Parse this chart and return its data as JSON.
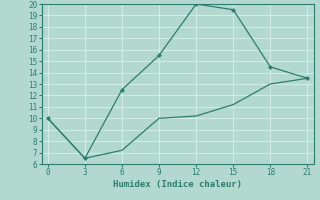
{
  "xlabel": "Humidex (Indice chaleur)",
  "line1_x": [
    0,
    3,
    6,
    9,
    12,
    15,
    18,
    21
  ],
  "line1_y": [
    10,
    6.5,
    12.5,
    15.5,
    20,
    19.5,
    14.5,
    13.5
  ],
  "line2_x": [
    0,
    3,
    6,
    9,
    12,
    15,
    18,
    21
  ],
  "line2_y": [
    10,
    6.5,
    7.2,
    10.0,
    10.2,
    11.2,
    13.0,
    13.5
  ],
  "line_color": "#2e7d6e",
  "bg_color": "#b2d8d0",
  "grid_color": "#d0ede8",
  "xlim": [
    -0.5,
    21.5
  ],
  "ylim": [
    6,
    20
  ],
  "xticks": [
    0,
    3,
    6,
    9,
    12,
    15,
    18,
    21
  ],
  "yticks": [
    6,
    7,
    8,
    9,
    10,
    11,
    12,
    13,
    14,
    15,
    16,
    17,
    18,
    19,
    20
  ],
  "tick_fontsize": 5.5,
  "xlabel_fontsize": 6.5
}
